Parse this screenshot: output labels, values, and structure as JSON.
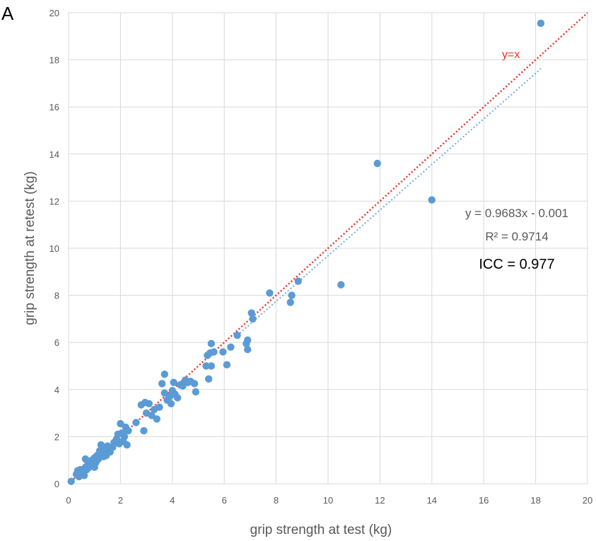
{
  "panel_label": "A",
  "chart_data": {
    "type": "scatter",
    "xlabel": "grip strength at test (kg)",
    "ylabel": "grip strength at retest (kg)",
    "xlim": [
      0,
      20
    ],
    "ylim": [
      0,
      20
    ],
    "xticks": [
      "0",
      "2",
      "4",
      "6",
      "8",
      "10",
      "12",
      "14",
      "16",
      "18",
      "20"
    ],
    "yticks": [
      "0",
      "2",
      "4",
      "6",
      "8",
      "10",
      "12",
      "14",
      "16",
      "18",
      "20"
    ],
    "grid": true,
    "colors": {
      "points": "#5b9bd5",
      "identity_line": "#e8302a",
      "trendline": "#7fb0e0",
      "grid": "#d9d9d9",
      "text": "#595959"
    },
    "series": [
      {
        "type": "scatter",
        "points": [
          [
            0.1,
            0.1
          ],
          [
            0.3,
            0.4
          ],
          [
            0.35,
            0.55
          ],
          [
            0.4,
            0.3
          ],
          [
            0.45,
            0.6
          ],
          [
            0.5,
            0.5
          ],
          [
            0.55,
            0.4
          ],
          [
            0.6,
            0.35
          ],
          [
            0.65,
            0.7
          ],
          [
            0.65,
            1.05
          ],
          [
            0.7,
            0.6
          ],
          [
            0.75,
            0.9
          ],
          [
            0.8,
            0.7
          ],
          [
            0.85,
            0.75
          ],
          [
            0.9,
            1.0
          ],
          [
            0.95,
            0.8
          ],
          [
            1.0,
            1.1
          ],
          [
            1.0,
            0.7
          ],
          [
            1.05,
            0.9
          ],
          [
            1.1,
            1.2
          ],
          [
            1.15,
            1.05
          ],
          [
            1.2,
            1.4
          ],
          [
            1.25,
            1.65
          ],
          [
            1.3,
            1.3
          ],
          [
            1.35,
            1.15
          ],
          [
            1.4,
            1.5
          ],
          [
            1.45,
            1.2
          ],
          [
            1.5,
            1.6
          ],
          [
            1.55,
            1.45
          ],
          [
            1.6,
            1.35
          ],
          [
            1.7,
            1.55
          ],
          [
            1.75,
            1.75
          ],
          [
            1.85,
            1.9
          ],
          [
            1.9,
            2.1
          ],
          [
            1.95,
            1.7
          ],
          [
            2.0,
            2.55
          ],
          [
            2.05,
            2.15
          ],
          [
            2.1,
            1.8
          ],
          [
            2.15,
            2.0
          ],
          [
            2.2,
            2.4
          ],
          [
            2.25,
            1.65
          ],
          [
            2.3,
            2.25
          ],
          [
            2.6,
            2.6
          ],
          [
            2.8,
            3.35
          ],
          [
            2.9,
            2.25
          ],
          [
            2.95,
            3.45
          ],
          [
            3.0,
            3.0
          ],
          [
            3.1,
            3.4
          ],
          [
            3.2,
            2.9
          ],
          [
            3.3,
            3.15
          ],
          [
            3.4,
            2.75
          ],
          [
            3.5,
            3.25
          ],
          [
            3.6,
            4.25
          ],
          [
            3.7,
            4.65
          ],
          [
            3.7,
            3.85
          ],
          [
            3.8,
            3.55
          ],
          [
            3.9,
            3.7
          ],
          [
            3.95,
            3.4
          ],
          [
            4.0,
            3.95
          ],
          [
            4.05,
            4.3
          ],
          [
            4.1,
            3.8
          ],
          [
            4.2,
            3.65
          ],
          [
            4.3,
            4.2
          ],
          [
            4.4,
            4.15
          ],
          [
            4.5,
            4.4
          ],
          [
            4.6,
            4.3
          ],
          [
            4.7,
            4.35
          ],
          [
            4.85,
            4.25
          ],
          [
            4.9,
            3.9
          ],
          [
            5.3,
            5.0
          ],
          [
            5.35,
            5.45
          ],
          [
            5.4,
            4.45
          ],
          [
            5.45,
            5.55
          ],
          [
            5.5,
            5.95
          ],
          [
            5.5,
            5.0
          ],
          [
            5.6,
            5.6
          ],
          [
            5.95,
            5.6
          ],
          [
            6.1,
            5.05
          ],
          [
            6.25,
            5.8
          ],
          [
            6.5,
            6.3
          ],
          [
            6.85,
            5.95
          ],
          [
            6.9,
            6.1
          ],
          [
            6.9,
            5.7
          ],
          [
            7.05,
            7.25
          ],
          [
            7.1,
            7.0
          ],
          [
            7.75,
            8.1
          ],
          [
            8.55,
            7.7
          ],
          [
            8.6,
            8.0
          ],
          [
            8.85,
            8.6
          ],
          [
            10.5,
            8.45
          ],
          [
            11.9,
            13.6
          ],
          [
            14.0,
            12.05
          ],
          [
            18.2,
            19.55
          ]
        ]
      },
      {
        "type": "line",
        "label": "y=x",
        "from": [
          0,
          0
        ],
        "to": [
          20,
          20
        ]
      },
      {
        "type": "trendline",
        "slope": 0.9683,
        "intercept": -0.001,
        "x_from": 6.5,
        "x_to": 18.2
      }
    ],
    "annotations": {
      "identity_label": "y=x",
      "equation": "y = 0.9683x - 0.001",
      "r_squared": "R² = 0.9714",
      "icc": "ICC = 0.977"
    }
  }
}
